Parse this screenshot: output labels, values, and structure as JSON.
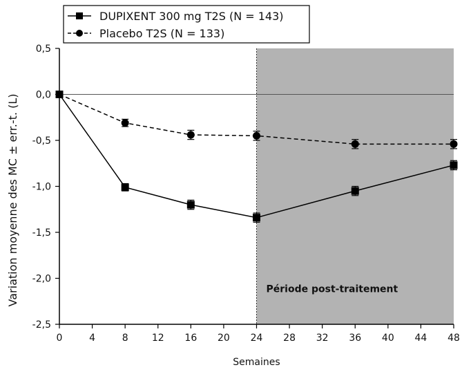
{
  "chart_data": {
    "type": "line",
    "xlabel": "Semaines",
    "ylabel": "Variation moyenne des MC ± err.-t. (L)",
    "xlim": [
      0,
      48
    ],
    "ylim": [
      -2.5,
      0.5
    ],
    "xticks": [
      0,
      4,
      8,
      12,
      16,
      20,
      24,
      28,
      32,
      36,
      40,
      44,
      48
    ],
    "yticks": [
      0.5,
      0.0,
      -0.5,
      -1.0,
      -1.5,
      -2.0,
      -2.5
    ],
    "ytick_labels": [
      "0,5",
      "0,0",
      "-0,5",
      "-1,0",
      "-1,5",
      "-2,0",
      "-2,5"
    ],
    "reference_line_y": 0,
    "shaded_region": {
      "from_x": 24,
      "to_x": 48,
      "label": "Période post-traitement",
      "color": "#b3b3b3"
    },
    "legend_position": "top-left",
    "series": [
      {
        "name": "DUPIXENT 300 mg T2S (N = 143)",
        "marker": "square",
        "line_style": "solid",
        "x": [
          0,
          8,
          16,
          24,
          36,
          48
        ],
        "y": [
          0.0,
          -1.01,
          -1.2,
          -1.34,
          -1.05,
          -0.77
        ],
        "error": [
          0.03,
          0.04,
          0.05,
          0.05,
          0.05,
          0.05
        ]
      },
      {
        "name": "Placebo T2S (N = 133)",
        "marker": "circle",
        "line_style": "dashed",
        "x": [
          0,
          8,
          16,
          24,
          36,
          48
        ],
        "y": [
          0.0,
          -0.31,
          -0.44,
          -0.45,
          -0.54,
          -0.54
        ],
        "error": [
          0.03,
          0.04,
          0.05,
          0.05,
          0.05,
          0.05
        ]
      }
    ]
  }
}
